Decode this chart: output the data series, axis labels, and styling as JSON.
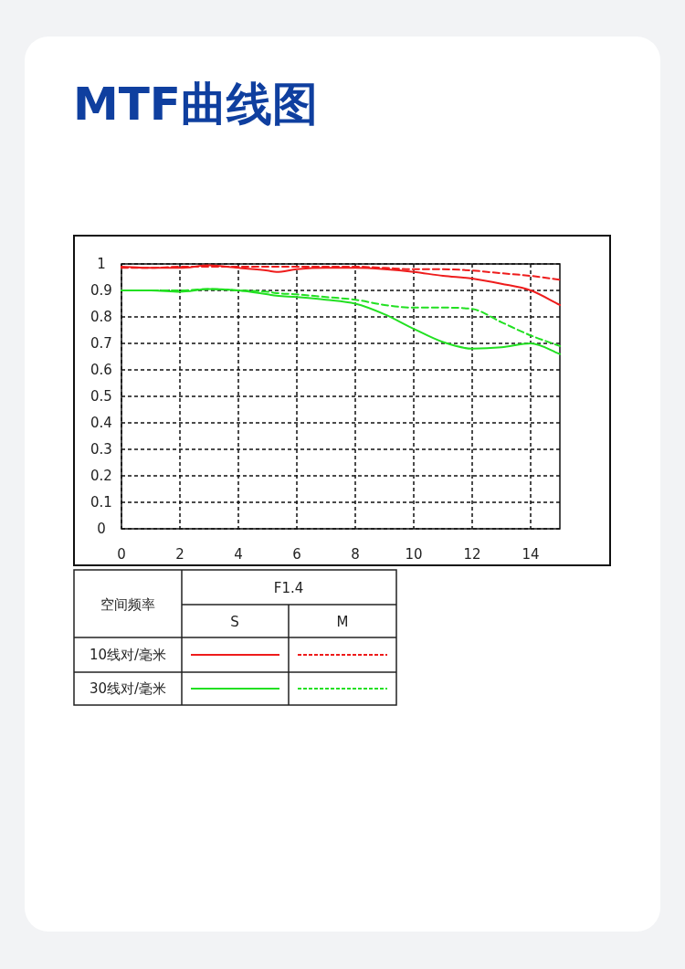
{
  "chart_data": {
    "type": "line",
    "title": "MTF曲线图",
    "x": [
      0,
      1,
      2,
      3,
      4,
      5,
      5.3,
      6,
      7,
      8,
      9,
      10,
      11,
      12,
      13,
      14,
      15
    ],
    "series": [
      {
        "color": "#ee1c1c",
        "line_style": "solid",
        "values": [
          0.99,
          0.985,
          0.985,
          0.995,
          0.985,
          0.975,
          0.97,
          0.98,
          0.985,
          0.985,
          0.98,
          0.97,
          0.955,
          0.945,
          0.925,
          0.9,
          0.845
        ]
      },
      {
        "color": "#ee1c1c",
        "line_style": "dashed",
        "values": [
          0.985,
          0.985,
          0.99,
          0.99,
          0.99,
          0.99,
          0.99,
          0.99,
          0.99,
          0.99,
          0.985,
          0.98,
          0.98,
          0.975,
          0.965,
          0.955,
          0.94
        ]
      },
      {
        "color": "#22e022",
        "line_style": "solid",
        "values": [
          0.9,
          0.9,
          0.895,
          0.905,
          0.9,
          0.885,
          0.88,
          0.875,
          0.865,
          0.85,
          0.81,
          0.755,
          0.705,
          0.68,
          0.685,
          0.7,
          0.66
        ]
      },
      {
        "color": "#22e022",
        "line_style": "dashed",
        "values": [
          0.9,
          0.9,
          0.9,
          0.905,
          0.9,
          0.895,
          0.89,
          0.885,
          0.875,
          0.865,
          0.845,
          0.835,
          0.835,
          0.83,
          0.78,
          0.73,
          0.69
        ]
      }
    ],
    "xlim": [
      0,
      15
    ],
    "ylim": [
      0,
      1
    ],
    "xticks": [
      0,
      2,
      4,
      6,
      8,
      10,
      12,
      14
    ],
    "yticks": [
      0,
      0.1,
      0.2,
      0.3,
      0.4,
      0.5,
      0.6,
      0.7,
      0.8,
      0.9,
      1
    ],
    "grid": true,
    "legend_title": "空间频率",
    "annotations": [
      "F1.4",
      "S",
      "M",
      "10线对/毫米",
      "30线对/毫米"
    ]
  }
}
